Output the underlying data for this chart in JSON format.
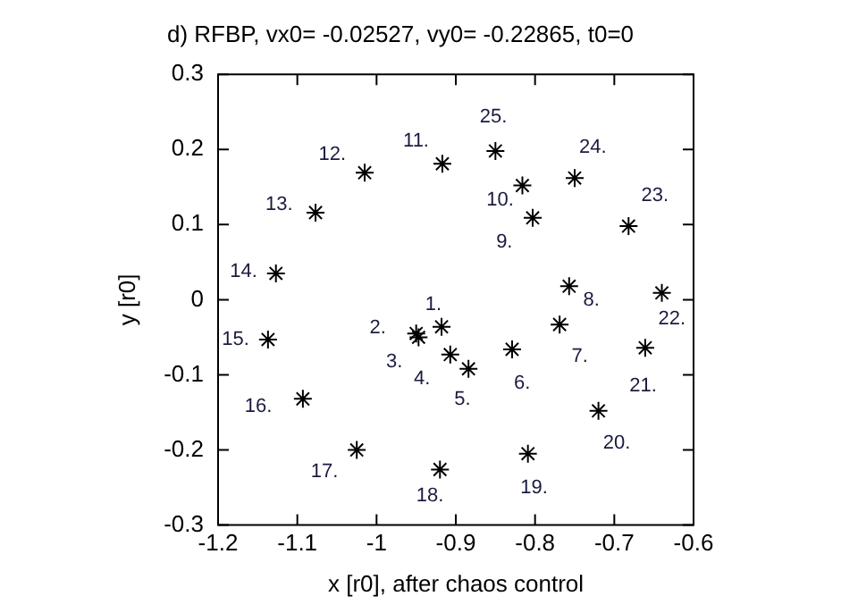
{
  "chart_data": {
    "type": "scatter",
    "title": "d) RFBP, vx0= -0.02527, vy0= -0.22865, t0=0",
    "xlabel": "x [r0], after chaos control",
    "ylabel": "y [r0]",
    "xlim": [
      -1.2,
      -0.6
    ],
    "xticks": [
      -1.2,
      -1.1,
      -1,
      -0.9,
      -0.8,
      -0.7,
      -0.6
    ],
    "ylim": [
      -0.3,
      0.3
    ],
    "yticks": [
      -0.3,
      -0.2,
      -0.1,
      0,
      0.1,
      0.2,
      0.3
    ],
    "grid": false,
    "legend": false,
    "marker": "cross",
    "series": [
      {
        "color": "#000000",
        "x": [
          -0.918,
          -0.95,
          -0.947,
          -0.907,
          -0.884,
          -0.829,
          -0.769,
          -0.757,
          -0.803,
          -0.816,
          -0.917,
          -1.015,
          -1.077,
          -1.127,
          -1.137,
          -1.093,
          -1.025,
          -0.92,
          -0.809,
          -0.72,
          -0.661,
          -0.64,
          -0.682,
          -0.75,
          -0.85
        ],
        "values": [
          -0.036,
          -0.045,
          -0.05,
          -0.073,
          -0.092,
          -0.066,
          -0.033,
          0.018,
          0.109,
          0.152,
          0.181,
          0.169,
          0.116,
          0.035,
          -0.053,
          -0.132,
          -0.2,
          -0.226,
          -0.205,
          -0.148,
          -0.064,
          0.009,
          0.098,
          0.162,
          0.198
        ]
      }
    ],
    "annotations": [
      {
        "text": "1.",
        "x": -0.918,
        "y": -0.036
      },
      {
        "text": "2.",
        "x": -0.95,
        "y": -0.045
      },
      {
        "text": "3.",
        "x": -0.947,
        "y": -0.05
      },
      {
        "text": "4.",
        "x": -0.907,
        "y": -0.073
      },
      {
        "text": "5.",
        "x": -0.884,
        "y": -0.092
      },
      {
        "text": "6.",
        "x": -0.829,
        "y": -0.066
      },
      {
        "text": "7.",
        "x": -0.769,
        "y": -0.033
      },
      {
        "text": "8.",
        "x": -0.757,
        "y": 0.018
      },
      {
        "text": "9.",
        "x": -0.803,
        "y": 0.109
      },
      {
        "text": "10.",
        "x": -0.816,
        "y": 0.152
      },
      {
        "text": "11.",
        "x": -0.917,
        "y": 0.181
      },
      {
        "text": "12.",
        "x": -1.015,
        "y": 0.169
      },
      {
        "text": "13.",
        "x": -1.077,
        "y": 0.116
      },
      {
        "text": "14.",
        "x": -1.127,
        "y": 0.035
      },
      {
        "text": "15.",
        "x": -1.137,
        "y": -0.053
      },
      {
        "text": "16.",
        "x": -1.093,
        "y": -0.132
      },
      {
        "text": "17.",
        "x": -1.025,
        "y": -0.2
      },
      {
        "text": "18.",
        "x": -0.92,
        "y": -0.226
      },
      {
        "text": "19.",
        "x": -0.809,
        "y": -0.205
      },
      {
        "text": "20.",
        "x": -0.72,
        "y": -0.148
      },
      {
        "text": "21.",
        "x": -0.661,
        "y": -0.064
      },
      {
        "text": "22.",
        "x": -0.64,
        "y": 0.009
      },
      {
        "text": "23.",
        "x": -0.682,
        "y": 0.098
      },
      {
        "text": "24.",
        "x": -0.75,
        "y": 0.162
      },
      {
        "text": "25.",
        "x": -0.85,
        "y": 0.198
      }
    ]
  }
}
